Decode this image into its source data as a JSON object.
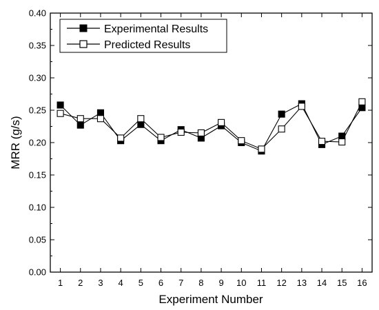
{
  "chart_data": {
    "type": "line",
    "xlabel": "Experiment Number",
    "ylabel": "MRR  (g/s)",
    "xlim": [
      0.5,
      16.5
    ],
    "ylim": [
      0.0,
      0.4
    ],
    "x": [
      1,
      2,
      3,
      4,
      5,
      6,
      7,
      8,
      9,
      10,
      11,
      12,
      13,
      14,
      15,
      16
    ],
    "x_ticks": [
      "1",
      "2",
      "3",
      "4",
      "5",
      "6",
      "7",
      "8",
      "9",
      "10",
      "11",
      "12",
      "13",
      "14",
      "15",
      "16"
    ],
    "y_ticks": [
      "0.00",
      "0.05",
      "0.10",
      "0.15",
      "0.20",
      "0.25",
      "0.30",
      "0.35",
      "0.40"
    ],
    "grid": false,
    "legend_position": "top-left",
    "series": [
      {
        "name": "Experimental Results",
        "marker": "filled-square",
        "color": "#000000",
        "values": [
          0.258,
          0.227,
          0.246,
          0.203,
          0.228,
          0.203,
          0.22,
          0.207,
          0.226,
          0.2,
          0.187,
          0.244,
          0.26,
          0.197,
          0.21,
          0.254
        ]
      },
      {
        "name": "Predicted Results",
        "marker": "open-square",
        "color": "#000000",
        "values": [
          0.245,
          0.237,
          0.237,
          0.207,
          0.237,
          0.208,
          0.216,
          0.215,
          0.231,
          0.203,
          0.19,
          0.221,
          0.256,
          0.202,
          0.201,
          0.263
        ]
      }
    ]
  }
}
